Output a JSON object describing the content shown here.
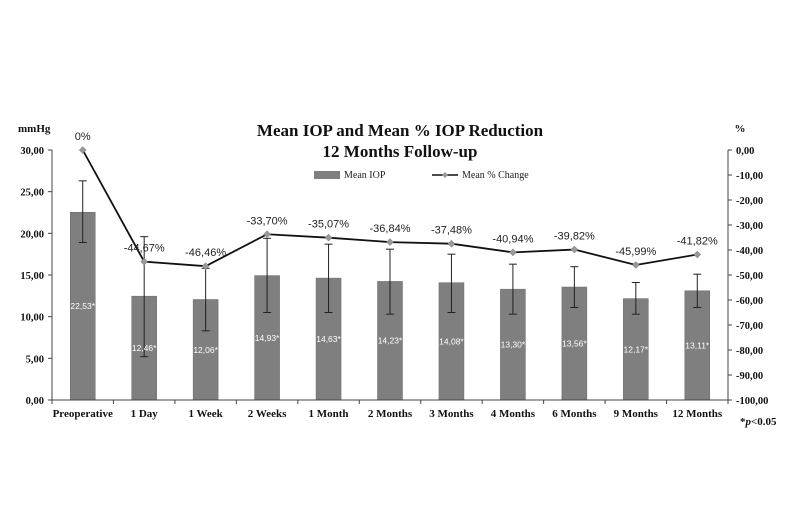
{
  "chart_data": {
    "type": "bar",
    "title": [
      "Mean IOP and Mean % IOP Reduction",
      "12 Months Follow-up"
    ],
    "left_axis_unit": "mmHg",
    "right_axis_unit": "%",
    "categories": [
      "Preoperative",
      "1 Day",
      "1 Week",
      "2 Weeks",
      "1 Month",
      "2 Months",
      "3 Months",
      "4 Months",
      "6 Months",
      "9 Months",
      "12 Months"
    ],
    "left_ylim": [
      0,
      30
    ],
    "left_ticks": [
      "0,00",
      "5,00",
      "10,00",
      "15,00",
      "20,00",
      "25,00",
      "30,00"
    ],
    "right_ylim": [
      -100,
      0
    ],
    "right_ticks": [
      "0,00",
      "-10,00",
      "-20,00",
      "-30,00",
      "-40,00",
      "-50,00",
      "-60,00",
      "-70,00",
      "-80,00",
      "-90,00",
      "-100,00"
    ],
    "series": [
      {
        "name": "Mean IOP",
        "type": "bar",
        "axis": "left",
        "color": "#7f7f7f",
        "values": [
          22.53,
          12.46,
          12.06,
          14.93,
          14.63,
          14.23,
          14.08,
          13.3,
          13.56,
          12.17,
          13.11
        ],
        "error_low": [
          18.9,
          5.2,
          8.3,
          10.5,
          10.5,
          10.3,
          10.5,
          10.3,
          11.1,
          10.3,
          11.1
        ],
        "error_high": [
          26.3,
          19.6,
          15.8,
          19.4,
          18.7,
          18.1,
          17.5,
          16.3,
          16.0,
          14.1,
          15.1
        ],
        "labels": [
          "22,53*",
          "12,46*",
          "12,06*",
          "14,93*",
          "14,63*",
          "14,23*",
          "14,08*",
          "13,30*",
          "13,56*",
          "12,17*",
          "13,11*"
        ]
      },
      {
        "name": "Mean % Change",
        "type": "line",
        "axis": "right",
        "color": "#111111",
        "marker_color": "#999999",
        "values": [
          0,
          -44.67,
          -46.46,
          -33.7,
          -35.07,
          -36.84,
          -37.48,
          -40.94,
          -39.82,
          -45.99,
          -41.82
        ],
        "labels": [
          "0%",
          "-44,67%",
          "-46,46%",
          "-33,70%",
          "-35,07%",
          "-36,84%",
          "-37,48%",
          "-40,94%",
          "-39,82%",
          "-45,99%",
          "-41,82%"
        ]
      }
    ],
    "legend_position": "top",
    "grid": false,
    "footnote": "*p<0.05"
  }
}
